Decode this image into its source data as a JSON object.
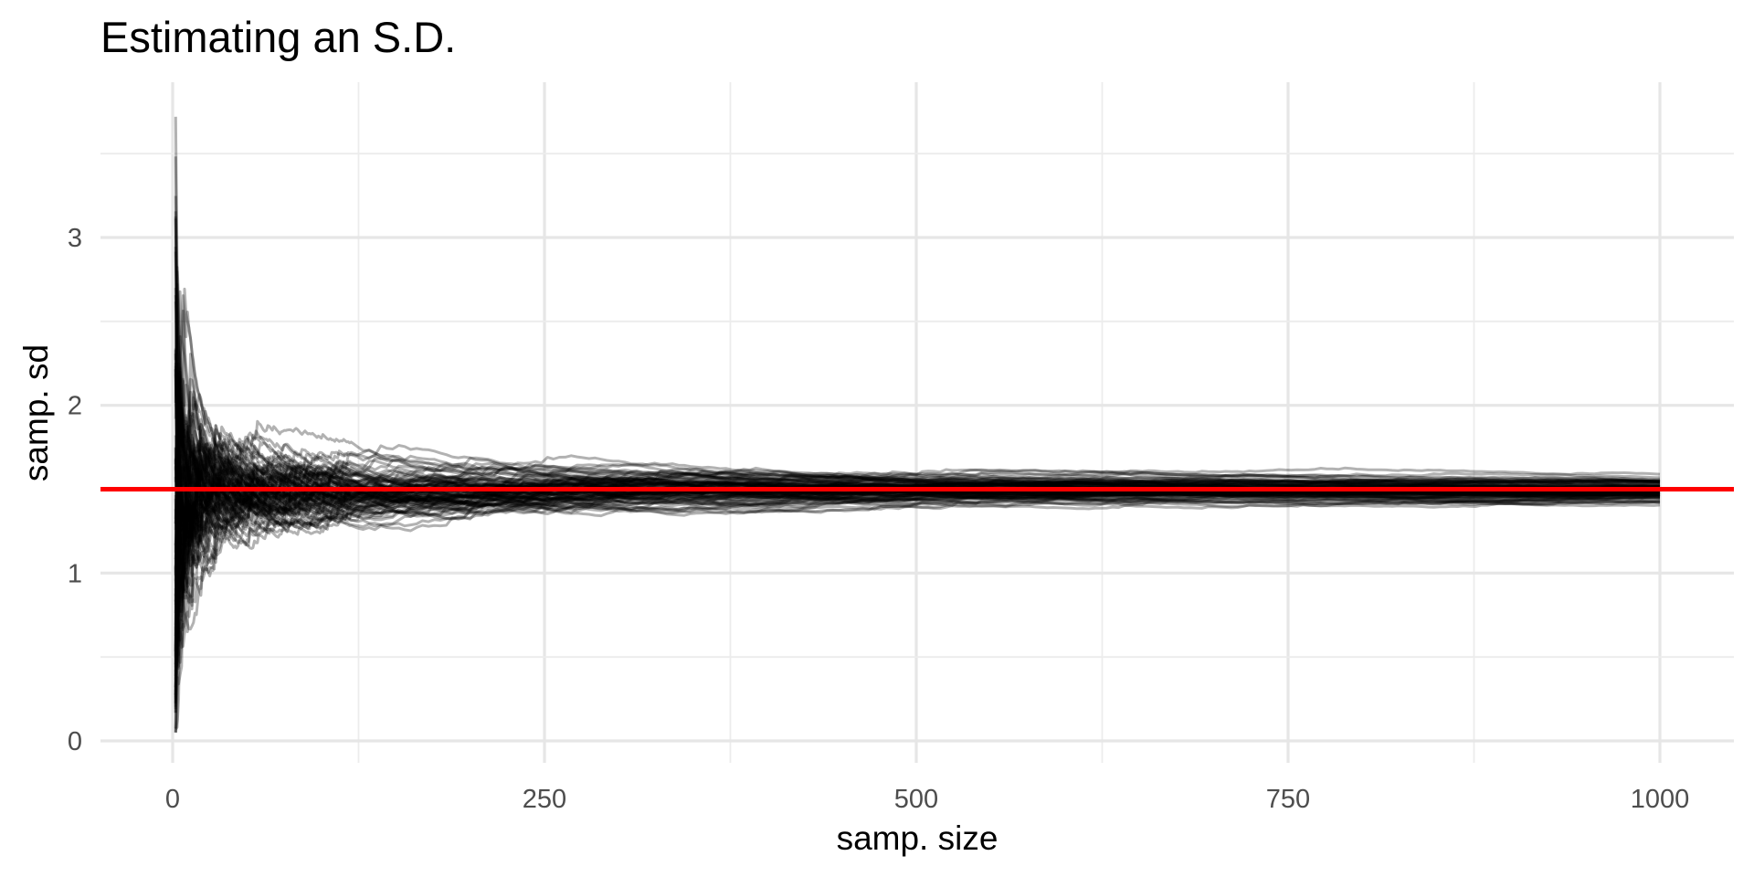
{
  "chart_data": {
    "type": "line",
    "title": "Estimating an S.D.",
    "xlabel": "samp. size",
    "ylabel": "samp. sd",
    "xlim": [
      -10,
      1000
    ],
    "ylim": [
      0,
      3.75
    ],
    "xticks": [
      0,
      250,
      500,
      750,
      1000
    ],
    "xtick_labels": [
      "0",
      "250",
      "500",
      "750",
      "1000"
    ],
    "yticks": [
      0,
      1,
      2,
      3
    ],
    "ytick_labels": [
      "0",
      "1",
      "2",
      "3"
    ],
    "grid": true,
    "legend": "none",
    "reference_line": {
      "orientation": "horizontal",
      "y": 1.5,
      "color": "#ff0000"
    },
    "series_style": {
      "color": "#000000",
      "opacity": 0.3
    },
    "series_summary": {
      "count": 100,
      "true_sd": 1.5,
      "x_range": [
        2,
        1000
      ],
      "max_y": 3.72,
      "min_y": 0.05
    }
  }
}
